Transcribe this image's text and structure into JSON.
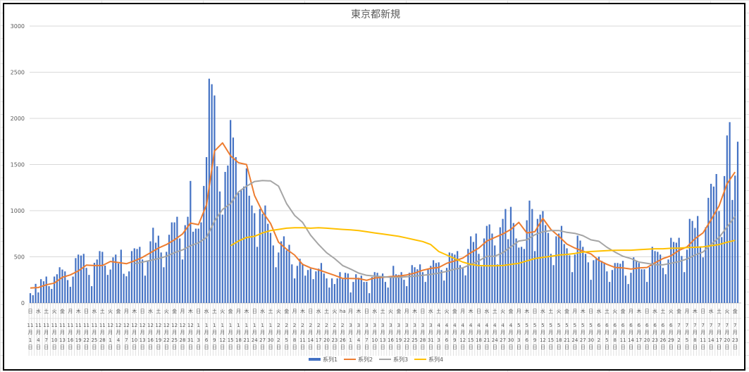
{
  "chart_data": {
    "type": "bar+line",
    "title": "東京都新規",
    "ylim": [
      0,
      3000
    ],
    "yticks": [
      0,
      500,
      1000,
      1500,
      2000,
      2500,
      3000
    ],
    "grid": "horizontal",
    "legend_position": "bottom",
    "colors": {
      "系列1": "#4472c4",
      "系列2": "#ed7d31",
      "系列3": "#a5a5a5",
      "系列4": "#ffc000"
    },
    "x_labels": {
      "weekday": [
        "日",
        "水",
        "土",
        "火",
        "金",
        "月",
        "木",
        "日",
        "水",
        "土",
        "火",
        "金",
        "月",
        "木",
        "日",
        "水",
        "土",
        "火",
        "金",
        "月",
        "木",
        "日",
        "水",
        "土",
        "火",
        "金",
        "月",
        "木",
        "日",
        "水",
        "土",
        "火",
        "金",
        "月",
        "木",
        "日",
        "水",
        "土",
        "火",
        "ha",
        "月",
        "木",
        "日",
        "水",
        "土",
        "火",
        "金",
        "月",
        "木",
        "日",
        "水",
        "土",
        "火",
        "金",
        "月",
        "木",
        "日",
        "水",
        "土",
        "火",
        "金",
        "月",
        "木",
        "日",
        "水",
        "土",
        "火",
        "金",
        "月",
        "木",
        "日",
        "水",
        "土",
        "火",
        "金",
        "月",
        "木",
        "日",
        "水",
        "土",
        "火",
        "金",
        "月",
        "木",
        "日",
        "水",
        "土",
        "火",
        "金"
      ],
      "month": [
        11,
        11,
        11,
        11,
        11,
        11,
        11,
        11,
        11,
        11,
        12,
        12,
        12,
        12,
        12,
        12,
        12,
        12,
        12,
        12,
        12,
        1,
        1,
        1,
        1,
        1,
        1,
        1,
        1,
        1,
        1,
        2,
        2,
        2,
        2,
        2,
        2,
        2,
        2,
        2,
        3,
        3,
        3,
        3,
        3,
        3,
        3,
        3,
        3,
        3,
        3,
        4,
        4,
        4,
        4,
        4,
        4,
        4,
        4,
        4,
        4,
        5,
        5,
        5,
        5,
        5,
        5,
        5,
        5,
        5,
        5,
        6,
        6,
        6,
        6,
        6,
        6,
        6,
        6,
        6,
        6,
        7,
        7,
        7,
        7,
        7,
        7,
        7,
        7
      ],
      "day": [
        1,
        4,
        7,
        10,
        13,
        16,
        19,
        22,
        25,
        28,
        1,
        4,
        7,
        10,
        13,
        16,
        19,
        22,
        25,
        28,
        31,
        3,
        6,
        9,
        12,
        15,
        18,
        21,
        24,
        27,
        30,
        2,
        5,
        8,
        11,
        14,
        17,
        20,
        23,
        26,
        1,
        4,
        7,
        10,
        13,
        16,
        19,
        22,
        25,
        28,
        31,
        3,
        6,
        9,
        12,
        15,
        18,
        21,
        24,
        27,
        30,
        3,
        6,
        9,
        12,
        15,
        18,
        21,
        24,
        27,
        30,
        2,
        5,
        8,
        11,
        14,
        17,
        20,
        23,
        26,
        29,
        2,
        5,
        8,
        11,
        14,
        17,
        20,
        23
      ],
      "month_suffix": "月",
      "day_suffix": "日"
    },
    "bars": {
      "name": "系列1",
      "values": [
        106,
        84,
        207,
        114,
        258,
        235,
        286,
        182,
        152,
        286,
        311,
        387,
        362,
        342,
        248,
        175,
        286,
        486,
        524,
        514,
        532,
        380,
        304,
        182,
        435,
        471,
        562,
        554,
        405,
        304,
        362,
        494,
        524,
        428,
        577,
        316,
        289,
        342,
        562,
        592,
        585,
        608,
        471,
        296,
        450,
        668,
        815,
        653,
        729,
        547,
        387,
        554,
        739,
        873,
        873,
        934,
        699,
        471,
        843,
        934,
        1322,
        772,
        805,
        805,
        873,
        1268,
        1580,
        2430,
        2370,
        2248,
        1481,
        1208,
        957,
        1420,
        1489,
        1982,
        1792,
        1580,
        1192,
        1230,
        1261,
        1458,
        1162,
        1056,
        973,
        608,
        1018,
        965,
        1056,
        858,
        759,
        623,
        387,
        547,
        668,
        722,
        570,
        630,
        418,
        266,
        402,
        478,
        425,
        296,
        357,
        372,
        258,
        342,
        372,
        433,
        319,
        266,
        167,
        266,
        205,
        266,
        334,
        258,
        327,
        319,
        114,
        228,
        311,
        273,
        296,
        228,
        228,
        106,
        281,
        334,
        327,
        273,
        319,
        228,
        167,
        281,
        402,
        311,
        304,
        334,
        251,
        182,
        327,
        410,
        387,
        365,
        418,
        334,
        228,
        372,
        402,
        463,
        433,
        440,
        357,
        243,
        380,
        547,
        539,
        524,
        562,
        410,
        380,
        299,
        585,
        722,
        661,
        752,
        532,
        395,
        699,
        835,
        851,
        752,
        623,
        418,
        820,
        911,
        1018,
        691,
        1041,
        866,
        699,
        600,
        608,
        585,
        896,
        1109,
        1018,
        562,
        911,
        957,
        995,
        843,
        759,
        532,
        410,
        722,
        752,
        835,
        638,
        592,
        516,
        334,
        524,
        729,
        676,
        608,
        532,
        440,
        251,
        463,
        478,
        501,
        456,
        433,
        342,
        228,
        357,
        433,
        433,
        425,
        456,
        296,
        205,
        327,
        494,
        456,
        433,
        365,
        365,
        228,
        387,
        608,
        562,
        554,
        524,
        380,
        311,
        471,
        706,
        661,
        653,
        706,
        509,
        334,
        577,
        911,
        889,
        813,
        942,
        608,
        494,
        820,
        1139,
        1291,
        1261,
        1397,
        995,
        714,
        1375,
        1815,
        1959,
        1116,
        1380,
        1747
      ]
    },
    "lines": [
      {
        "name": "系列2",
        "values": [
          162,
          167,
          197,
          215,
          278,
          304,
          347,
          410,
          405,
          405,
          450,
          438,
          425,
          456,
          494,
          544,
          595,
          633,
          684,
          747,
          866,
          848,
          1063,
          1646,
          1734,
          1595,
          1519,
          1500,
          1165,
          987,
          861,
          658,
          582,
          519,
          418,
          380,
          359,
          329,
          299,
          266,
          266,
          263,
          246,
          271,
          278,
          286,
          291,
          304,
          324,
          354,
          375,
          385,
          430,
          456,
          486,
          544,
          595,
          671,
          709,
          747,
          797,
          873,
          759,
          772,
          916,
          797,
          722,
          638,
          595,
          562,
          532,
          461,
          418,
          385,
          380,
          367,
          380,
          385,
          435,
          481,
          511,
          570,
          608,
          696,
          759,
          899,
          1051,
          1291,
          1418
        ]
      },
      {
        "name": "系列3",
        "values": [
          null,
          null,
          null,
          null,
          null,
          null,
          null,
          null,
          null,
          null,
          null,
          null,
          null,
          425,
          443,
          461,
          481,
          506,
          544,
          575,
          620,
          651,
          709,
          886,
          1013,
          1076,
          1203,
          1266,
          1316,
          1327,
          1322,
          1266,
          1076,
          949,
          873,
          734,
          633,
          544,
          481,
          405,
          367,
          324,
          299,
          291,
          284,
          278,
          278,
          284,
          291,
          299,
          309,
          324,
          342,
          367,
          380,
          418,
          456,
          506,
          506,
          544,
          608,
          671,
          684,
          739,
          772,
          785,
          785,
          765,
          754,
          729,
          684,
          668,
          603,
          552,
          506,
          481,
          443,
          430,
          415,
          413,
          430,
          448,
          476,
          519,
          552,
          633,
          709,
          823,
          937
        ]
      },
      {
        "name": "系列4",
        "values": [
          null,
          null,
          null,
          null,
          null,
          null,
          null,
          null,
          null,
          null,
          null,
          null,
          null,
          null,
          null,
          null,
          null,
          null,
          null,
          null,
          null,
          null,
          null,
          null,
          null,
          620,
          671,
          709,
          722,
          759,
          785,
          797,
          810,
          815,
          815,
          810,
          815,
          810,
          803,
          797,
          792,
          785,
          772,
          759,
          747,
          734,
          722,
          704,
          684,
          666,
          633,
          557,
          519,
          481,
          443,
          418,
          405,
          402,
          402,
          405,
          418,
          430,
          456,
          481,
          494,
          506,
          519,
          526,
          537,
          552,
          557,
          562,
          567,
          570,
          572,
          572,
          577,
          582,
          587,
          587,
          592,
          595,
          600,
          603,
          608,
          620,
          633,
          658,
          678
        ]
      }
    ]
  }
}
